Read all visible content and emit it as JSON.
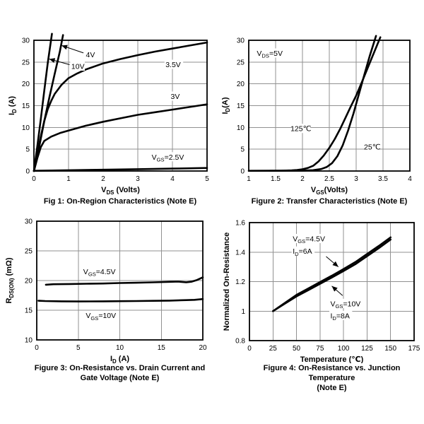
{
  "colors": {
    "background": "#ffffff",
    "axis": "#000000",
    "grid": "#919191",
    "curve": "#000000",
    "text": "#000000"
  },
  "chart_data": [
    {
      "id": "fig1",
      "type": "line",
      "caption_lines": [
        "Fig 1: On-Region Characteristics (Note E)"
      ],
      "xlabel": "V~DS~ (Volts)",
      "ylabel": "I~D~ (A)",
      "xlim": [
        0,
        5
      ],
      "ylim": [
        0,
        30
      ],
      "xticks": [
        0,
        1,
        2,
        3,
        4,
        5
      ],
      "yticks": [
        0,
        5,
        10,
        15,
        20,
        25,
        30
      ],
      "grid": true,
      "legend": "none",
      "series": [
        {
          "name": "VGS=10V",
          "x": [
            0,
            0.1,
            0.2,
            0.3,
            0.4,
            0.52
          ],
          "y": [
            0,
            5.8,
            12,
            18.5,
            24.8,
            31.5
          ]
        },
        {
          "name": "VGS=4V",
          "x": [
            0,
            0.15,
            0.3,
            0.45,
            0.6,
            0.75,
            0.84
          ],
          "y": [
            0,
            5.5,
            11.5,
            17,
            22.3,
            27.5,
            31.2
          ]
        },
        {
          "name": "VGS=3.5V",
          "x": [
            0,
            0.1,
            0.2,
            0.3,
            0.4,
            0.5,
            0.6,
            0.8,
            1,
            1.25,
            1.5,
            2,
            2.5,
            3,
            3.5,
            4,
            4.5,
            5
          ],
          "y": [
            0,
            4,
            8,
            11.5,
            14.2,
            16.1,
            17.7,
            19.8,
            21.3,
            22.4,
            23.3,
            24.7,
            25.7,
            26.6,
            27.4,
            28.1,
            28.8,
            29.5
          ]
        },
        {
          "name": "VGS=3V",
          "x": [
            0,
            0.1,
            0.2,
            0.3,
            0.5,
            0.75,
            1,
            1.5,
            2,
            2.5,
            3,
            3.5,
            4,
            4.5,
            5
          ],
          "y": [
            0,
            3,
            5.5,
            6.9,
            7.9,
            8.7,
            9.3,
            10.4,
            11.3,
            12.1,
            12.9,
            13.5,
            14.1,
            14.7,
            15.3
          ]
        },
        {
          "name": "VGS=2.5V",
          "x": [
            0,
            0.5,
            1,
            2,
            3,
            4,
            5
          ],
          "y": [
            0.05,
            0.12,
            0.18,
            0.3,
            0.42,
            0.55,
            0.7
          ]
        }
      ],
      "annotations": [
        {
          "text": "4V",
          "x": 1.5,
          "y": 26.7,
          "anchor": "start"
        },
        {
          "text": "10V",
          "x": 1.08,
          "y": 24,
          "anchor": "start"
        },
        {
          "text": "3.5V",
          "x": 3.8,
          "y": 24.4,
          "anchor": "start"
        },
        {
          "text": "3V",
          "x": 3.95,
          "y": 17.1,
          "anchor": "start"
        },
        {
          "text": "V~GS~=2.5V",
          "x": 3.4,
          "y": 3.2,
          "anchor": "start"
        }
      ],
      "arrows": [
        {
          "x1": 1.43,
          "y1": 27.1,
          "x2": 0.8,
          "y2": 28.8
        },
        {
          "x1": 1.03,
          "y1": 24.4,
          "x2": 0.44,
          "y2": 25.7
        }
      ]
    },
    {
      "id": "fig2",
      "type": "line",
      "caption_lines": [
        "Figure 2: Transfer Characteristics (Note E)"
      ],
      "xlabel": "V~GS~(Volts)",
      "ylabel": "I~D~(A)",
      "xlim": [
        1,
        4
      ],
      "ylim": [
        0,
        30
      ],
      "xticks": [
        1,
        1.5,
        2,
        2.5,
        3,
        3.5,
        4
      ],
      "yticks": [
        0,
        5,
        10,
        15,
        20,
        25,
        30
      ],
      "grid": true,
      "legend": "none",
      "series": [
        {
          "name": "125C",
          "x": [
            1,
            1.6,
            1.8,
            1.9,
            2,
            2.1,
            2.2,
            2.3,
            2.4,
            2.5,
            2.6,
            2.7,
            2.8,
            2.9,
            3,
            3.1,
            3.2,
            3.3,
            3.45
          ],
          "y": [
            0.05,
            0.08,
            0.15,
            0.25,
            0.4,
            0.7,
            1.2,
            2.2,
            3.6,
            5.3,
            7.3,
            9.6,
            12.2,
            14.8,
            17.3,
            20.2,
            23.2,
            26.2,
            30.7
          ]
        },
        {
          "name": "25C",
          "x": [
            1.4,
            2,
            2.2,
            2.35,
            2.45,
            2.55,
            2.65,
            2.75,
            2.85,
            2.95,
            3.05,
            3.15,
            3.25,
            3.37
          ],
          "y": [
            0.05,
            0.1,
            0.2,
            0.45,
            0.9,
            1.8,
            3.4,
            5.9,
            9.3,
            13.2,
            17.6,
            22,
            26.3,
            31
          ]
        }
      ],
      "annotations": [
        {
          "text": "V~DS~=5V",
          "x": 1.15,
          "y": 27,
          "anchor": "start"
        },
        {
          "text": "125℃",
          "x": 1.97,
          "y": 9.7,
          "anchor": "middle"
        },
        {
          "text": "25℃",
          "x": 3.3,
          "y": 5.5,
          "anchor": "middle"
        }
      ],
      "arrows": []
    },
    {
      "id": "fig3",
      "type": "line",
      "caption_lines": [
        "Figure 3: On-Resistance vs. Drain Current and",
        "Gate Voltage (Note E)"
      ],
      "xlabel": "I~D~ (A)",
      "ylabel": "R~DS(ON)~ (mΩ)",
      "xlim": [
        0,
        20
      ],
      "ylim": [
        10,
        30
      ],
      "xticks": [
        0,
        5,
        10,
        15,
        20
      ],
      "yticks": [
        10,
        15,
        20,
        25,
        30
      ],
      "grid": true,
      "legend": "none",
      "series": [
        {
          "name": "VGS=4.5V",
          "x": [
            1.1,
            2,
            4,
            6,
            8,
            10,
            12,
            14,
            16,
            17,
            18,
            18.6,
            19.3,
            20
          ],
          "y": [
            19.3,
            19.38,
            19.42,
            19.46,
            19.5,
            19.58,
            19.63,
            19.7,
            19.78,
            19.82,
            19.72,
            19.8,
            20.1,
            20.55
          ]
        },
        {
          "name": "VGS=10V",
          "x": [
            0.2,
            1,
            3,
            5,
            8,
            10,
            12,
            14,
            16,
            18,
            19,
            20
          ],
          "y": [
            16.6,
            16.55,
            16.5,
            16.48,
            16.5,
            16.52,
            16.55,
            16.58,
            16.62,
            16.7,
            16.75,
            16.88
          ]
        }
      ],
      "annotations": [
        {
          "text": "V~GS~=4.5V",
          "x": 5.6,
          "y": 21.5,
          "anchor": "start"
        },
        {
          "text": "V~GS~=10V",
          "x": 5.9,
          "y": 14.1,
          "anchor": "start"
        }
      ],
      "arrows": []
    },
    {
      "id": "fig4",
      "type": "line",
      "caption_lines": [
        "Figure 4: On-Resistance vs. Junction Temperature",
        "(Note E)"
      ],
      "xlabel": "Temperature (℃)",
      "ylabel": "Normalized On-Resistance",
      "xlim": [
        0,
        175
      ],
      "ylim": [
        0.8,
        1.6
      ],
      "xticks": [
        0,
        25,
        50,
        75,
        100,
        125,
        150,
        175
      ],
      "yticks": [
        0.8,
        1,
        1.2,
        1.4,
        1.6
      ],
      "grid": true,
      "legend": "none",
      "series": [
        {
          "name": "VGS=4.5V ID=6A",
          "x": [
            25,
            37.5,
            50,
            62.5,
            75,
            87.5,
            100,
            112.5,
            125,
            137.5,
            150
          ],
          "y": [
            1.0,
            1.055,
            1.11,
            1.153,
            1.197,
            1.24,
            1.285,
            1.332,
            1.387,
            1.442,
            1.5
          ]
        },
        {
          "name": "VGS=10V ID=8A",
          "x": [
            25,
            37.5,
            50,
            62.5,
            75,
            87.5,
            100,
            112.5,
            125,
            137.5,
            150
          ],
          "y": [
            1.0,
            1.05,
            1.1,
            1.142,
            1.185,
            1.228,
            1.272,
            1.318,
            1.372,
            1.427,
            1.485
          ]
        }
      ],
      "annotations": [
        {
          "text": "V~GS~=4.5V",
          "x": 46,
          "y": 1.49,
          "anchor": "start"
        },
        {
          "text": "I~D~=6A",
          "x": 46,
          "y": 1.405,
          "anchor": "start"
        },
        {
          "text": "V~GS~=10V",
          "x": 86,
          "y": 1.05,
          "anchor": "start"
        },
        {
          "text": "I~D~=8A",
          "x": 86,
          "y": 0.968,
          "anchor": "start"
        }
      ],
      "arrows": [
        {
          "x1": 81.5,
          "y1": 1.37,
          "x2": 94.5,
          "y2": 1.3
        },
        {
          "x1": 99,
          "y1": 1.105,
          "x2": 87.5,
          "y2": 1.17
        }
      ]
    }
  ]
}
